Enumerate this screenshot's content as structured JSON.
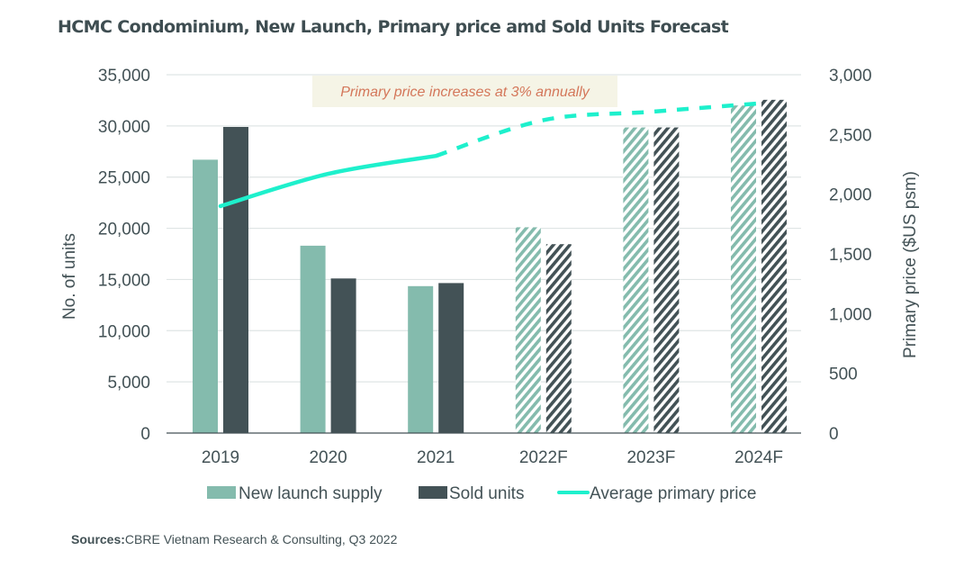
{
  "colors": {
    "new_launch": "#84bbad",
    "sold": "#435256",
    "price_line": "#1ef0cc",
    "gridline": "#dfe5e5",
    "annotation_bg": "#f5f4e6",
    "annotation_text": "#d4775a"
  },
  "chart_data": {
    "type": "bar",
    "title": "HCMC Condominium, New Launch, Primary price amd Sold Units Forecast",
    "categories": [
      "2019",
      "2020",
      "2021",
      "2022F",
      "2023F",
      "2024F"
    ],
    "forecast_categories": [
      "2022F",
      "2023F",
      "2024F"
    ],
    "series": [
      {
        "name": "New launch supply",
        "type": "bar",
        "axis": "left",
        "values": [
          26700,
          18300,
          14350,
          20100,
          29850,
          32000
        ]
      },
      {
        "name": "Sold units",
        "type": "bar",
        "axis": "left",
        "values": [
          29900,
          15100,
          14650,
          18450,
          29850,
          32550
        ]
      },
      {
        "name": "Average primary price",
        "type": "line",
        "axis": "right",
        "values": [
          1900,
          2170,
          2320,
          2620,
          2690,
          2760
        ],
        "dashed_from": "2021"
      }
    ],
    "ylabel": "No. of units",
    "ylim": [
      0,
      35000
    ],
    "yticks": [
      0,
      5000,
      10000,
      15000,
      20000,
      25000,
      30000,
      35000
    ],
    "ytick_labels": [
      "0",
      "5,000",
      "10,000",
      "15,000",
      "20,000",
      "25,000",
      "30,000",
      "35,000"
    ],
    "y2label": "Primary price ($US psm)",
    "y2lim": [
      0,
      3000
    ],
    "y2ticks": [
      0,
      500,
      1000,
      1500,
      2000,
      2500,
      3000
    ],
    "y2tick_labels": [
      "0",
      "500",
      "1,000",
      "1,500",
      "2,000",
      "2,500",
      "3,000"
    ],
    "grid": true,
    "legend": "bottom",
    "annotation": "Primary price increases at 3% annually"
  },
  "source": {
    "label": "Sources:",
    "text": "CBRE Vietnam Research & Consulting, Q3 2022"
  }
}
